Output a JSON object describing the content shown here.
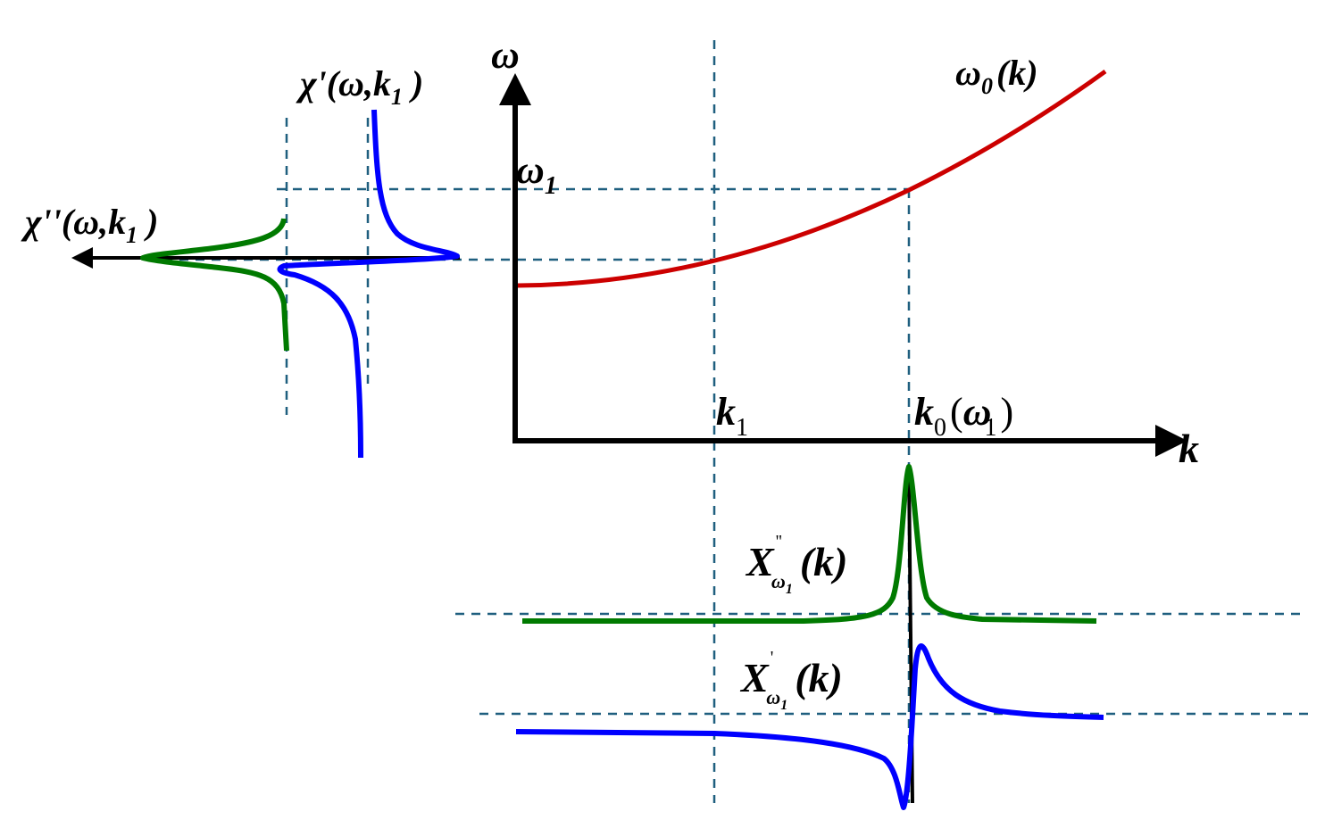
{
  "colors": {
    "dispersion_curve": "#cc0000",
    "real_part": "#0000ff",
    "imaginary_part": "#007a00",
    "guide_lines": "#1f5f7f",
    "axes": "#000000"
  },
  "labels": {
    "omega_axis": "ω",
    "k_axis": "k",
    "omega0": {
      "base": "ω",
      "sub": "0",
      "arg": "(k)"
    },
    "omega1": {
      "base": "ω",
      "sub": "1"
    },
    "k1": {
      "base": "k",
      "sub": "1"
    },
    "k0": {
      "base": "k",
      "sub": "0",
      "open": "(",
      "inner": "ω",
      "inner_sub": "1",
      "close": ")"
    },
    "chi_real": {
      "base": "χ'(ω,k",
      "sub": "1",
      "close": " )"
    },
    "chi_imag": {
      "base": "χ''(ω,k",
      "sub": "1",
      "close": " )"
    },
    "X_imag": {
      "base": "X",
      "sup": "''",
      "sub": "ω",
      "subsub": "1",
      "arg": "(k)"
    },
    "X_real": {
      "base": "X",
      "sup": "'",
      "sub": "ω",
      "subsub": "1",
      "arg": "(k)"
    }
  }
}
